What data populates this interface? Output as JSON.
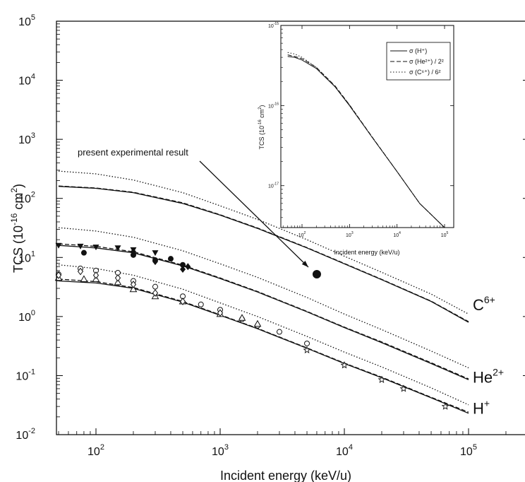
{
  "chart_data": [
    {
      "type": "line",
      "xscale": "log",
      "yscale": "log",
      "xlim": [
        50,
        100000
      ],
      "ylim": [
        0.01,
        100000
      ],
      "xlabel": "Incident energy (keV/u)",
      "ylabel": "TCS (10^-16 cm^2)",
      "xticks": [
        {
          "v": 100,
          "e": "2"
        },
        {
          "v": 1000,
          "e": "3"
        },
        {
          "v": 10000,
          "e": "4"
        },
        {
          "v": 100000,
          "e": "5"
        }
      ],
      "yticks": [
        {
          "v": 0.01,
          "e": "-2"
        },
        {
          "v": 0.1,
          "e": "-1"
        },
        {
          "v": 1,
          "e": "0"
        },
        {
          "v": 10,
          "e": "1"
        },
        {
          "v": 100,
          "e": "2"
        },
        {
          "v": 1000,
          "e": "3"
        },
        {
          "v": 10000,
          "e": "4"
        },
        {
          "v": 100000,
          "e": "5"
        }
      ],
      "ion_labels": [
        {
          "label": "C",
          "sup": "6+",
          "y": 1.6
        },
        {
          "label": "He",
          "sup": "2+",
          "y": 0.095
        },
        {
          "label": "H",
          "sup": "+",
          "y": 0.028
        }
      ],
      "annotation": {
        "text": "present experimental result",
        "x": 6000,
        "y": 5.2
      },
      "series": [
        {
          "style": "solid",
          "x": [
            50,
            100,
            200,
            500,
            1000,
            2000,
            5000,
            10000,
            20000,
            50000,
            100000
          ],
          "y": [
            4.0,
            3.7,
            3.0,
            1.75,
            1.05,
            0.62,
            0.29,
            0.16,
            0.092,
            0.042,
            0.023
          ]
        },
        {
          "style": "dashed",
          "x": [
            50,
            100,
            200,
            500,
            1000,
            2000,
            5000,
            10000,
            20000,
            50000,
            100000
          ],
          "y": [
            4.3,
            3.9,
            3.1,
            1.8,
            1.07,
            0.63,
            0.295,
            0.163,
            0.094,
            0.043,
            0.024
          ]
        },
        {
          "style": "dotted",
          "x": [
            50,
            100,
            200,
            500,
            1000,
            2000,
            5000,
            10000,
            20000,
            50000,
            100000
          ],
          "y": [
            7.5,
            6.5,
            5.0,
            2.9,
            1.7,
            1.0,
            0.46,
            0.25,
            0.14,
            0.062,
            0.032
          ]
        },
        {
          "style": "solid",
          "x": [
            50,
            100,
            200,
            500,
            1000,
            2000,
            5000,
            10000,
            20000,
            50000,
            100000
          ],
          "y": [
            16.0,
            14.5,
            12.0,
            7.2,
            4.4,
            2.6,
            1.2,
            0.65,
            0.36,
            0.16,
            0.085
          ]
        },
        {
          "style": "dashed",
          "x": [
            50,
            100,
            200,
            500,
            1000,
            2000,
            5000,
            10000,
            20000,
            50000,
            100000
          ],
          "y": [
            17.0,
            15.4,
            12.5,
            7.4,
            4.5,
            2.65,
            1.22,
            0.66,
            0.37,
            0.165,
            0.088
          ]
        },
        {
          "style": "dotted",
          "x": [
            50,
            100,
            200,
            500,
            1000,
            2000,
            5000,
            10000,
            20000,
            50000,
            100000
          ],
          "y": [
            32.0,
            28.0,
            22.0,
            13.0,
            7.8,
            4.6,
            2.1,
            1.1,
            0.6,
            0.26,
            0.135
          ]
        },
        {
          "style": "solid",
          "x": [
            50,
            100,
            200,
            500,
            1000,
            2000,
            5000,
            10000,
            20000,
            50000,
            100000
          ],
          "y": [
            160,
            148,
            125,
            82,
            52,
            31,
            14.5,
            7.8,
            4.2,
            1.8,
            0.8
          ]
        },
        {
          "style": "dashed",
          "x": [
            50,
            100,
            200,
            500,
            1000,
            2000,
            5000,
            10000,
            20000,
            50000,
            100000
          ],
          "y": [
            162,
            150,
            127,
            84,
            53,
            31.5,
            14.7,
            7.9,
            4.25,
            1.82,
            0.82
          ]
        },
        {
          "style": "dotted",
          "x": [
            50,
            100,
            200,
            500,
            1000,
            2000,
            5000,
            10000,
            20000,
            50000,
            100000
          ],
          "y": [
            290,
            260,
            205,
            125,
            75,
            44,
            20,
            10.5,
            5.6,
            2.4,
            1.1
          ]
        }
      ],
      "points": [
        {
          "marker": "circle-open",
          "x": [
            50,
            75,
            100,
            150,
            200,
            300,
            500,
            700,
            1000,
            1500,
            2000,
            3000,
            5000
          ],
          "y": [
            5.2,
            6.5,
            6.0,
            5.5,
            4.0,
            3.2,
            2.2,
            1.6,
            1.3,
            0.9,
            0.7,
            0.55,
            0.35
          ]
        },
        {
          "marker": "triangle-open",
          "x": [
            50,
            80,
            100,
            150,
            200,
            300,
            500,
            1000,
            1500,
            2000
          ],
          "y": [
            4.5,
            4.3,
            4.3,
            3.8,
            2.9,
            2.2,
            1.8,
            1.1,
            0.95,
            0.75
          ]
        },
        {
          "marker": "diamond-open",
          "x": [
            50,
            75,
            100,
            150,
            200,
            300,
            500,
            1000
          ],
          "y": [
            5.0,
            5.8,
            5.0,
            4.5,
            3.5,
            2.5,
            1.8,
            1.15
          ]
        },
        {
          "marker": "star",
          "x": [
            5000,
            10000,
            20000,
            30000,
            65000
          ],
          "y": [
            0.27,
            0.15,
            0.085,
            0.06,
            0.03
          ]
        },
        {
          "marker": "triangle-down-filled",
          "x": [
            50,
            75,
            100,
            150,
            200,
            300
          ],
          "y": [
            16,
            15.5,
            15,
            14.5,
            13.5,
            12
          ]
        },
        {
          "marker": "circle-filled",
          "x": [
            80,
            200,
            300,
            400,
            500
          ],
          "y": [
            12,
            11,
            9,
            9.5,
            7.5
          ]
        },
        {
          "marker": "diamond-filled",
          "x": [
            200,
            300,
            500,
            550
          ],
          "y": [
            12.5,
            8.5,
            6.3,
            7.0
          ]
        },
        {
          "marker": "circle-filled-large",
          "x": [
            6000
          ],
          "y": [
            5.2
          ]
        }
      ]
    },
    {
      "type": "line",
      "xscale": "log",
      "yscale": "log",
      "xlim": [
        50,
        100000
      ],
      "ylim": [
        3e-18,
        1e-15
      ],
      "xlabel": "Incident energy (keV/u)",
      "ylabel": "TCS (10^-16 cm^2)",
      "xticks": [
        {
          "v": 100,
          "e": "2"
        },
        {
          "v": 1000,
          "e": "3"
        },
        {
          "v": 10000,
          "e": "4"
        },
        {
          "v": 100000,
          "e": "5"
        }
      ],
      "yticks": [
        {
          "v": 1e-15,
          "e": "-15"
        },
        {
          "v": 1e-16,
          "e": "-16"
        },
        {
          "v": 1e-17,
          "e": "-17"
        }
      ],
      "legend_position": "top-right",
      "series": [
        {
          "name": "σ (H⁺)",
          "style": "solid",
          "x": [
            50,
            70,
            100,
            200,
            500,
            1000,
            3000,
            10000,
            30000,
            100000
          ],
          "y": [
            4.1e-16,
            4e-16,
            3.7e-16,
            2.9e-16,
            1.7e-16,
            1e-16,
            4e-17,
            1.5e-17,
            6e-18,
            2.3e-18
          ]
        },
        {
          "name": "σ (He²⁺) / 2²",
          "style": "dashed",
          "x": [
            50,
            70,
            100,
            200,
            500,
            1000,
            3000,
            10000,
            30000,
            100000
          ],
          "y": [
            4.3e-16,
            4.1e-16,
            3.85e-16,
            3e-16,
            1.75e-16,
            1.02e-16,
            4.05e-17,
            1.5e-17,
            6e-18,
            2.3e-18
          ]
        },
        {
          "name": "σ (C⁶⁺) / 6²",
          "style": "dotted",
          "x": [
            50,
            70,
            100,
            200,
            500,
            1000,
            3000,
            10000,
            30000,
            100000
          ],
          "y": [
            4.6e-16,
            4.4e-16,
            4e-16,
            3e-16,
            1.72e-16,
            1.02e-16,
            4e-17,
            1.5e-17,
            6e-18,
            2.3e-18
          ]
        }
      ]
    }
  ]
}
